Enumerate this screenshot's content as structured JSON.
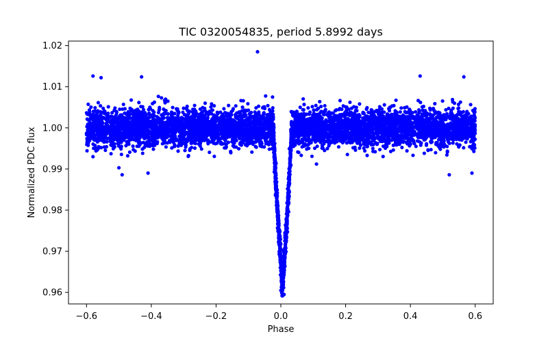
{
  "chart_data": {
    "type": "scatter",
    "title": "TIC 0320054835, period 5.8992 days",
    "xlabel": "Phase",
    "ylabel": "Normalized PDC flux",
    "xlim": [
      -0.6556,
      0.6556
    ],
    "ylim": [
      0.9572,
      1.0211
    ],
    "x_ticks": [
      -0.6,
      -0.4,
      -0.2,
      0.0,
      0.2,
      0.4,
      0.6
    ],
    "x_tick_labels": [
      "−0.6",
      "−0.4",
      "−0.2",
      "0.0",
      "0.2",
      "0.4",
      "0.6"
    ],
    "y_ticks": [
      0.96,
      0.97,
      0.98,
      0.99,
      1.0,
      1.01,
      1.02
    ],
    "y_tick_labels": [
      "0.96",
      "0.97",
      "0.98",
      "0.99",
      "1.00",
      "1.01",
      "1.02"
    ],
    "grid": false,
    "legend": "none",
    "marker_color": "#0000ff",
    "series": [
      {
        "name": "PDC flux",
        "description_values": {
          "phase_range": [
            -0.6,
            0.6
          ],
          "baseline_flux": 1.0,
          "baseline_scatter_range": [
            0.9935,
            1.0075
          ],
          "transit_center_phase": 0.005,
          "transit_min_flux": 0.9595,
          "transit_half_width_phase": 0.028
        },
        "outliers": [
          {
            "x": -0.072,
            "y": 1.0185
          },
          {
            "x": -0.58,
            "y": 1.0126
          },
          {
            "x": -0.555,
            "y": 1.0122
          },
          {
            "x": -0.43,
            "y": 1.0124
          },
          {
            "x": -0.49,
            "y": 0.9886
          },
          {
            "x": -0.41,
            "y": 0.989
          },
          {
            "x": -0.5,
            "y": 0.9903
          },
          {
            "x": 0.43,
            "y": 1.0126
          },
          {
            "x": 0.565,
            "y": 1.0124
          },
          {
            "x": 0.52,
            "y": 0.9886
          },
          {
            "x": 0.59,
            "y": 0.989
          },
          {
            "x": 0.11,
            "y": 0.9912
          },
          {
            "x": -0.58,
            "y": 0.993
          },
          {
            "x": 0.01,
            "y": 0.9595
          },
          {
            "x": 0.0,
            "y": 0.9605
          }
        ]
      }
    ]
  }
}
